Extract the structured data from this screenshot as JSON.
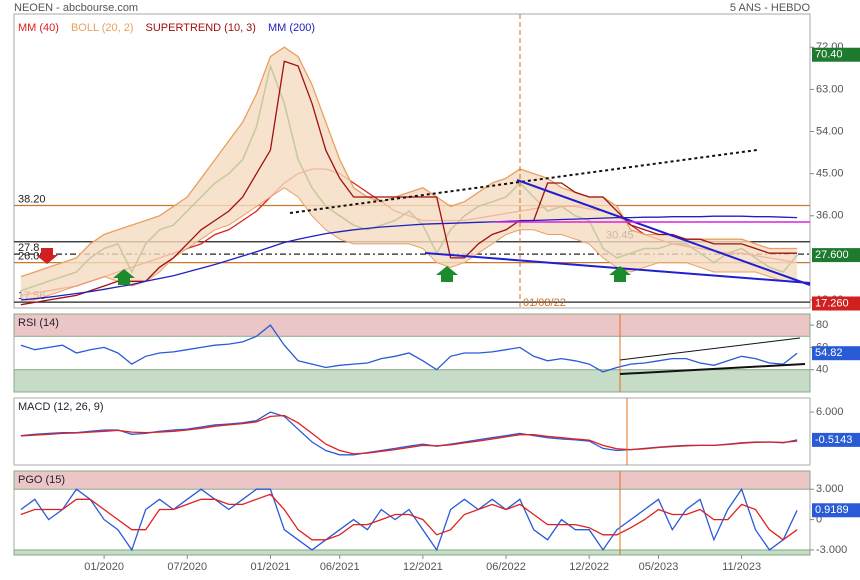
{
  "header": {
    "title": "NEOEN - abcbourse.com",
    "period": "5 ANS - HEBDO"
  },
  "chart_data": [
    {
      "type": "line",
      "categories": [
        null,
        null,
        null,
        null,
        null,
        null,
        "01/2020",
        null,
        null,
        null,
        null,
        null,
        "07/2020",
        null,
        null,
        null,
        null,
        null,
        "01/2021",
        null,
        null,
        null,
        null,
        "06/2021",
        null,
        null,
        null,
        null,
        null,
        "12/2021",
        null,
        null,
        null,
        null,
        null,
        "06/2022",
        null,
        null,
        null,
        null,
        null,
        "12/2022",
        null,
        null,
        null,
        null,
        "05/2023",
        null,
        null,
        null,
        null,
        null,
        "11/2023",
        null,
        null,
        null,
        null
      ],
      "ylim": [
        16.3,
        79.1
      ],
      "yticks": [
        {
          "value": 72,
          "label": "72.00"
        },
        {
          "value": 63,
          "label": "63.00"
        },
        {
          "value": 54,
          "label": "54.00"
        },
        {
          "value": 45,
          "label": "45.00"
        },
        {
          "value": 36,
          "label": "36.00"
        },
        {
          "value": 18,
          "label": "18.00"
        }
      ],
      "marker_label": "01/08/22",
      "series": [
        {
          "color": "#1b7f1b",
          "values": [
            20,
            21,
            22,
            23,
            24,
            27,
            29,
            30,
            24,
            30,
            33,
            34,
            37,
            40,
            43,
            45,
            48,
            55,
            68,
            60,
            48,
            42,
            38,
            36,
            34,
            33,
            34,
            35,
            37,
            34,
            28,
            33,
            36,
            38,
            39,
            40,
            43,
            40,
            37,
            38,
            36,
            35,
            29,
            27,
            28,
            29,
            29,
            30,
            30,
            28,
            26,
            28,
            29,
            27,
            25,
            24,
            27.6
          ]
        },
        {
          "name": "MM (40)",
          "color": "#e02020",
          "values": [
            19,
            19.5,
            20,
            20.5,
            21,
            22,
            23,
            24,
            25,
            26,
            27,
            28,
            29,
            30,
            32,
            33,
            35,
            37,
            40,
            43,
            45,
            46,
            46,
            45,
            43,
            41,
            39,
            37,
            36,
            35,
            35,
            35,
            35,
            35.5,
            36,
            36.5,
            37,
            37.5,
            38,
            38,
            38,
            37.5,
            37,
            36,
            34,
            32,
            31,
            30,
            29.5,
            29,
            28.5,
            28,
            28,
            27.5,
            27,
            26.5,
            26
          ]
        },
        {
          "name": "BOLL (20, 2)",
          "color": "#e8a060",
          "fill": "#f5dcc0",
          "values": [
            23,
            24,
            25,
            26,
            27,
            30,
            32,
            33,
            34,
            35,
            36,
            38,
            40,
            44,
            48,
            52,
            56,
            62,
            70,
            72,
            70,
            64,
            56,
            48,
            42,
            40,
            39,
            40,
            41,
            42,
            40,
            38,
            39,
            41,
            43,
            44,
            46,
            45,
            44,
            42,
            41,
            40,
            40,
            38,
            33,
            32,
            32,
            32,
            31,
            31,
            31,
            31,
            31,
            30,
            29,
            29,
            29
          ],
          "lower": [
            18,
            18,
            19,
            20,
            21,
            22,
            23,
            22,
            21,
            22,
            24,
            27,
            29,
            31,
            33,
            34,
            36,
            38,
            40,
            42,
            40,
            36,
            33,
            31,
            30,
            30,
            30,
            30,
            30,
            29,
            26,
            25,
            26,
            28,
            30,
            32,
            33,
            33,
            32,
            32,
            31,
            30,
            27,
            25,
            24,
            25,
            26,
            26,
            26,
            25,
            24,
            24,
            24,
            24,
            23,
            22,
            22
          ]
        },
        {
          "name": "SUPERTREND (10, 3)",
          "color": "#a01010",
          "values": [
            17,
            17.5,
            18,
            18.5,
            19,
            20,
            21,
            22,
            22,
            22,
            25,
            27,
            30,
            33,
            35,
            37,
            40,
            45,
            50,
            69,
            68,
            60,
            50,
            44,
            40,
            40,
            40,
            40,
            40,
            40,
            40,
            27,
            27,
            30,
            32,
            33,
            35,
            35,
            43,
            43,
            41,
            40,
            40,
            37,
            34,
            33,
            32,
            32,
            31,
            31,
            30,
            30,
            30,
            29,
            28,
            28,
            28
          ]
        },
        {
          "name": "MM (200)",
          "color": "#2020c0",
          "values": [
            18,
            18.3,
            18.6,
            19,
            19.4,
            19.8,
            20.3,
            20.8,
            21.3,
            22,
            22.6,
            23.2,
            24,
            24.8,
            25.6,
            26.5,
            27.4,
            28.3,
            29.3,
            30.3,
            31,
            31.6,
            32.2,
            32.6,
            33,
            33.3,
            33.6,
            33.8,
            34,
            34.2,
            34.3,
            34.4,
            34.5,
            34.6,
            34.7,
            34.8,
            34.9,
            35,
            35.1,
            35.2,
            35.3,
            35.4,
            35.5,
            35.6,
            35.6,
            35.7,
            35.7,
            35.8,
            35.8,
            35.8,
            35.9,
            35.9,
            35.9,
            35.8,
            35.8,
            35.7,
            35.6
          ]
        }
      ],
      "levels": [
        {
          "value": 38.2,
          "label": "38.20",
          "color": "#c8782a",
          "dash": false
        },
        {
          "value": 30.45,
          "label": "30.45",
          "color": "#222",
          "dash": false
        },
        {
          "value": 27.8,
          "label": "27.8",
          "color": "#222",
          "dash": true
        },
        {
          "value": 26,
          "label": "26.00",
          "color": "#c8782a",
          "dash": false
        },
        {
          "value": 17.56,
          "label": "17.56",
          "color": "#222",
          "dash": false
        }
      ],
      "price_labels": [
        {
          "value": 70.4,
          "label": "70.40",
          "color": "#1e7a2e"
        },
        {
          "value": 27.6,
          "label": "27.600",
          "color": "#1e7a2e"
        },
        {
          "value": 17.26,
          "label": "17.260",
          "color": "#d02020"
        }
      ]
    },
    {
      "type": "line",
      "ylim": [
        20,
        90
      ],
      "yticks": [
        80,
        60,
        40
      ],
      "zones": [
        {
          "from": 70,
          "to": 90,
          "color": "#ecc6c6"
        },
        {
          "from": 20,
          "to": 40,
          "color": "#c6dcc6"
        }
      ],
      "last_box": "#2a5bd7",
      "series": [
        {
          "name": "RSI (14)",
          "color": "#2a5bd7",
          "values": [
            62,
            58,
            60,
            62,
            55,
            58,
            60,
            55,
            45,
            52,
            55,
            56,
            58,
            60,
            62,
            63,
            65,
            70,
            80,
            62,
            48,
            45,
            42,
            44,
            45,
            46,
            50,
            52,
            55,
            48,
            40,
            52,
            55,
            55,
            56,
            58,
            60,
            52,
            48,
            50,
            48,
            45,
            38,
            42,
            45,
            46,
            48,
            50,
            50,
            46,
            44,
            48,
            52,
            50,
            46,
            45,
            54.82
          ]
        }
      ]
    },
    {
      "type": "line",
      "ylim": [
        -6.4,
        9.3
      ],
      "yticks": [
        {
          "value": 6,
          "label": "6.000"
        }
      ],
      "last_box": "#2a5bd7",
      "series": [
        {
          "name": "MACD (12, 26, 9)",
          "color": "#2a5bd7",
          "values": [
            0.5,
            0.8,
            1,
            1.2,
            1.2,
            1.5,
            1.8,
            1.8,
            0.8,
            1,
            1.5,
            1.8,
            2,
            2.5,
            3,
            3.2,
            3.5,
            4,
            6,
            5,
            2,
            -1,
            -3,
            -4,
            -4,
            -3.5,
            -3,
            -2.5,
            -2,
            -1.5,
            -2,
            -1.5,
            -1,
            -0.5,
            0,
            0.5,
            1,
            0.5,
            0,
            -0.3,
            -0.5,
            -0.8,
            -2.5,
            -3,
            -2.8,
            -2.5,
            -2.2,
            -2,
            -1.8,
            -1.8,
            -1.8,
            -1.5,
            -1.2,
            -1,
            -1,
            -1.2,
            -0.5143
          ]
        },
        {
          "color": "#e02020",
          "values": [
            0.4,
            0.6,
            0.8,
            1,
            1.1,
            1.3,
            1.5,
            1.7,
            1.3,
            1.2,
            1.3,
            1.5,
            1.8,
            2.2,
            2.7,
            3,
            3.3,
            3.7,
            5,
            5.2,
            3.5,
            1,
            -1.5,
            -3,
            -3.8,
            -3.6,
            -3.2,
            -2.8,
            -2.3,
            -1.8,
            -1.9,
            -1.7,
            -1.2,
            -0.8,
            -0.3,
            0.2,
            0.7,
            0.7,
            0.3,
            0,
            -0.3,
            -0.6,
            -1.8,
            -2.6,
            -2.8,
            -2.6,
            -2.3,
            -2.1,
            -1.9,
            -1.8,
            -1.8,
            -1.6,
            -1.3,
            -1.1,
            -1,
            -1.1,
            -0.8
          ]
        }
      ]
    },
    {
      "type": "line",
      "ylim": [
        -3.5,
        4.8
      ],
      "yticks": [
        {
          "value": 3,
          "label": "3.000"
        },
        0,
        {
          "value": -3,
          "label": "-3.000"
        }
      ],
      "zones": [
        {
          "from": 3,
          "to": 4.8,
          "color": "#ecc6c6"
        },
        {
          "from": -3.5,
          "to": -3,
          "color": "#c6dcc6"
        }
      ],
      "last_box": "#2a5bd7",
      "series": [
        {
          "name": "PGO (15)",
          "color": "#2a5bd7",
          "values": [
            1,
            2,
            0,
            1,
            3,
            2,
            0,
            -1,
            -3,
            1,
            2,
            1,
            2,
            3,
            2,
            1,
            2,
            3,
            3,
            -1,
            -2,
            -3,
            -2,
            -1,
            0,
            -1,
            1,
            0,
            1,
            -1,
            -3,
            1,
            2,
            1,
            2,
            1,
            2,
            -1,
            -2,
            0,
            -1,
            -1,
            -3,
            -1,
            0,
            1,
            2,
            -1,
            1,
            2,
            -2,
            1,
            3,
            -1,
            -3,
            -2,
            0.9189
          ]
        },
        {
          "color": "#e02020",
          "values": [
            0.5,
            1,
            1,
            1,
            2,
            2,
            1,
            0,
            -1,
            -1,
            1,
            1,
            1.5,
            2,
            2,
            1.5,
            1.5,
            2,
            2.5,
            1,
            -1,
            -2,
            -2,
            -1.5,
            -0.5,
            -0.5,
            0,
            0.5,
            0.5,
            0,
            -1.5,
            -1,
            0.5,
            1,
            1.5,
            1,
            1.5,
            0.5,
            -0.5,
            -0.5,
            -0.5,
            -0.8,
            -1.5,
            -1.5,
            -0.8,
            0,
            1,
            0.5,
            0.5,
            1,
            0,
            0,
            1.5,
            1,
            -1,
            -2,
            -1
          ]
        }
      ]
    }
  ]
}
